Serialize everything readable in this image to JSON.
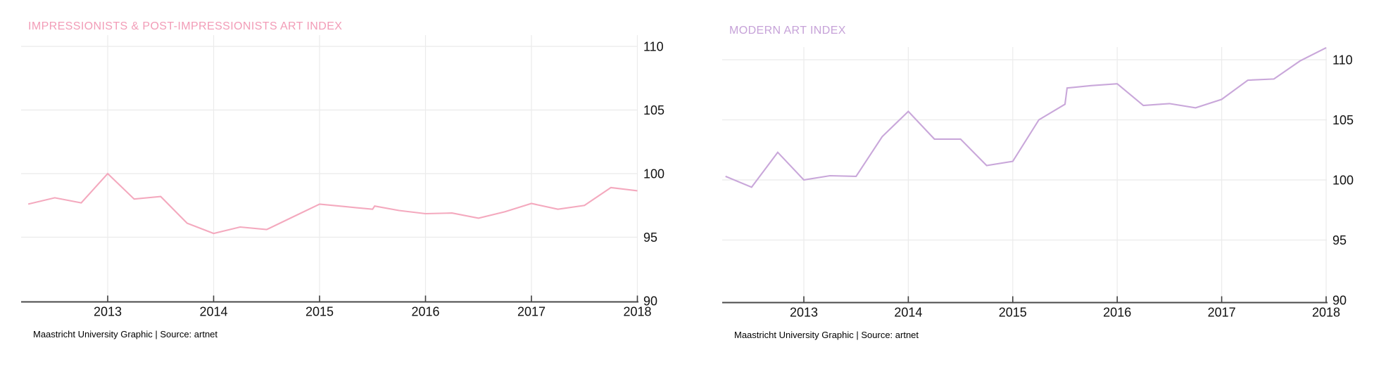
{
  "page": {
    "background": "#ffffff"
  },
  "colors": {
    "grid": "#ebebeb",
    "axis": "#4a4a4a",
    "axis_tick": "#3f3f3f",
    "tick_label": "#111111",
    "footer_text": "#000000",
    "impressionists_accent": "#F29CB7",
    "impressionists_line": "#F4A9BE",
    "modern_accent": "#C6A2D8",
    "modern_line": "#C9A7DA"
  },
  "chart_data": [
    {
      "type": "line",
      "title": "IMPRESSIONISTS & POST-IMPRESSIONISTS ART INDEX",
      "title_color": "#F29CB7",
      "line_color": "#F4A9BE",
      "source_note": "Maastricht University Graphic | Source: artnet",
      "y_axis_side": "right",
      "grid": true,
      "xlim": [
        2012.18,
        2018
      ],
      "ylim": [
        90,
        110.8
      ],
      "x_ticks": [
        2013,
        2014,
        2015,
        2016,
        2017,
        2018
      ],
      "x_tick_labels": [
        "2013",
        "2014",
        "2015",
        "2016",
        "2017",
        "2018"
      ],
      "y_ticks": [
        90,
        95,
        100,
        105,
        110
      ],
      "y_tick_labels": [
        "90",
        "95",
        "100",
        "105",
        "110"
      ],
      "x": [
        2012.25,
        2012.5,
        2012.75,
        2013,
        2013.25,
        2013.5,
        2013.75,
        2014,
        2014.25,
        2014.5,
        2014.75,
        2015,
        2015.25,
        2015.5,
        2015.52,
        2015.75,
        2016,
        2016.25,
        2016.5,
        2016.75,
        2017,
        2017.25,
        2017.5,
        2017.75,
        2018
      ],
      "values": [
        97.6,
        98.1,
        97.7,
        100.0,
        98.0,
        98.2,
        96.1,
        95.3,
        95.8,
        95.6,
        96.6,
        97.6,
        97.4,
        97.2,
        97.45,
        97.1,
        96.85,
        96.9,
        96.5,
        97.0,
        97.65,
        97.2,
        97.5,
        98.9,
        98.65
      ],
      "annotations": [
        "small upward step in the line just after mid-2015"
      ]
    },
    {
      "type": "line",
      "title": "MODERN ART INDEX",
      "title_color": "#C6A2D8",
      "line_color": "#C9A7DA",
      "source_note": "Maastricht University Graphic | Source: artnet",
      "y_axis_side": "right",
      "grid": true,
      "xlim": [
        2012.2,
        2018
      ],
      "ylim": [
        90,
        111.2
      ],
      "x_ticks": [
        2013,
        2014,
        2015,
        2016,
        2017,
        2018
      ],
      "x_tick_labels": [
        "2013",
        "2014",
        "2015",
        "2016",
        "2017",
        "2018"
      ],
      "y_ticks": [
        90,
        95,
        100,
        105,
        110
      ],
      "y_tick_labels": [
        "90",
        "95",
        "100",
        "105",
        "110"
      ],
      "x": [
        2012.25,
        2012.5,
        2012.75,
        2013,
        2013.25,
        2013.5,
        2013.75,
        2014,
        2014.25,
        2014.5,
        2014.75,
        2015,
        2015.25,
        2015.5,
        2015.52,
        2015.75,
        2016,
        2016.25,
        2016.5,
        2016.75,
        2017,
        2017.25,
        2017.5,
        2017.75,
        2018
      ],
      "values": [
        100.3,
        99.4,
        102.3,
        100.0,
        100.35,
        100.3,
        103.6,
        105.7,
        103.4,
        103.4,
        101.2,
        101.55,
        105.0,
        106.3,
        107.65,
        107.85,
        108.0,
        106.2,
        106.35,
        106.0,
        106.7,
        108.3,
        108.4,
        109.9,
        111.0
      ],
      "annotations": [
        "upward step in the line just after mid-2015"
      ]
    }
  ]
}
